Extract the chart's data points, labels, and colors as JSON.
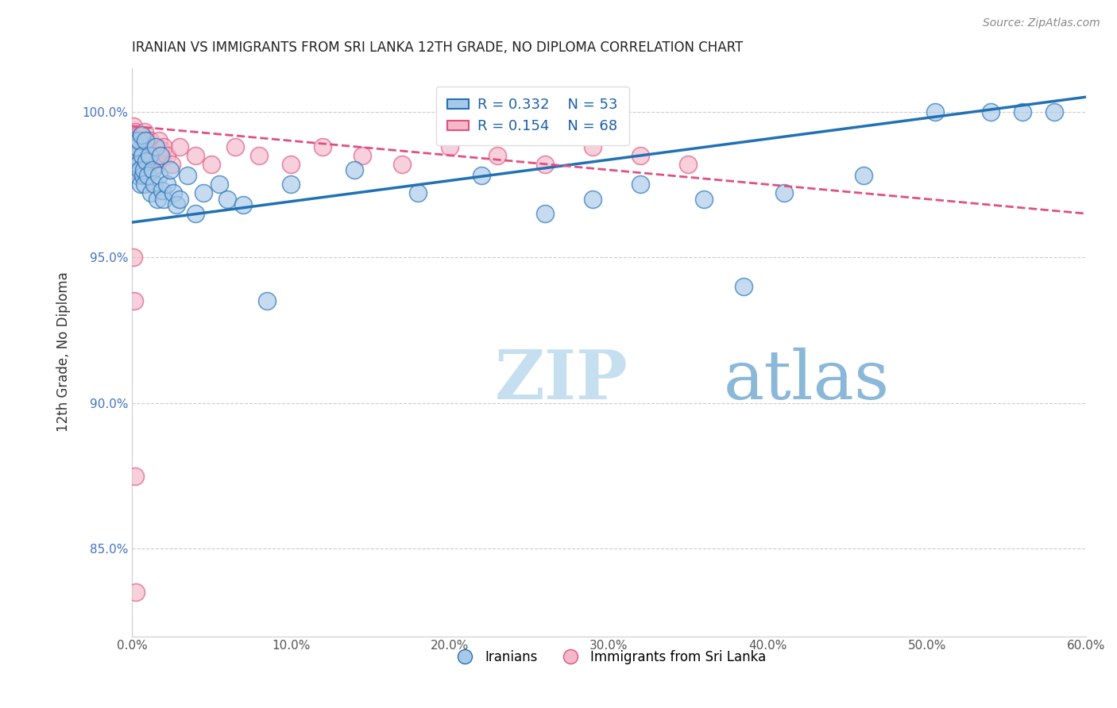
{
  "title": "IRANIAN VS IMMIGRANTS FROM SRI LANKA 12TH GRADE, NO DIPLOMA CORRELATION CHART",
  "source_text": "Source: ZipAtlas.com",
  "xlabel": "",
  "ylabel": "12th Grade, No Diploma",
  "xlim": [
    0.0,
    60.0
  ],
  "ylim": [
    82.0,
    101.5
  ],
  "xticks": [
    0.0,
    10.0,
    20.0,
    30.0,
    40.0,
    50.0,
    60.0
  ],
  "yticks": [
    85.0,
    90.0,
    95.0,
    100.0
  ],
  "ytick_labels": [
    "85.0%",
    "90.0%",
    "95.0%",
    "100.0%"
  ],
  "xtick_labels": [
    "0.0%",
    "10.0%",
    "20.0%",
    "30.0%",
    "40.0%",
    "50.0%",
    "60.0%"
  ],
  "legend_r1": "R = 0.332",
  "legend_n1": "N = 53",
  "legend_r2": "R = 0.154",
  "legend_n2": "N = 68",
  "color_blue": "#a8c8e8",
  "color_pink": "#f4b8c8",
  "color_blue_line": "#2171b5",
  "color_pink_line": "#e05080",
  "color_title": "#222222",
  "watermark_color": "#d8eaf5",
  "blue_trend_x0": 0.0,
  "blue_trend_y0": 96.2,
  "blue_trend_x1": 60.0,
  "blue_trend_y1": 100.5,
  "pink_trend_x0": 0.0,
  "pink_trend_y0": 99.5,
  "pink_trend_x1": 60.0,
  "pink_trend_y1": 96.5,
  "iranians_x": [
    0.15,
    0.2,
    0.3,
    0.35,
    0.4,
    0.45,
    0.5,
    0.55,
    0.6,
    0.65,
    0.7,
    0.75,
    0.8,
    0.85,
    0.9,
    1.0,
    1.1,
    1.2,
    1.3,
    1.4,
    1.5,
    1.6,
    1.7,
    1.8,
    1.9,
    2.0,
    2.2,
    2.4,
    2.6,
    2.8,
    3.0,
    3.5,
    4.0,
    4.5,
    5.5,
    6.0,
    7.0,
    8.5,
    10.0,
    14.0,
    18.0,
    22.0,
    26.0,
    29.0,
    32.0,
    36.0,
    38.5,
    41.0,
    46.0,
    50.5,
    54.0,
    56.0,
    58.0
  ],
  "iranians_y": [
    99.0,
    98.5,
    98.8,
    97.8,
    98.2,
    99.0,
    98.0,
    97.5,
    99.2,
    98.5,
    97.8,
    98.0,
    97.5,
    99.0,
    98.3,
    97.8,
    98.5,
    97.2,
    98.0,
    97.5,
    98.8,
    97.0,
    97.8,
    98.5,
    97.3,
    97.0,
    97.5,
    98.0,
    97.2,
    96.8,
    97.0,
    97.8,
    96.5,
    97.2,
    97.5,
    97.0,
    96.8,
    93.5,
    97.5,
    98.0,
    97.2,
    97.8,
    96.5,
    97.0,
    97.5,
    97.0,
    94.0,
    97.2,
    97.8,
    100.0,
    100.0,
    100.0,
    100.0
  ],
  "srilanka_x": [
    0.05,
    0.08,
    0.1,
    0.12,
    0.15,
    0.18,
    0.2,
    0.22,
    0.25,
    0.28,
    0.3,
    0.32,
    0.35,
    0.38,
    0.4,
    0.42,
    0.45,
    0.48,
    0.5,
    0.52,
    0.55,
    0.58,
    0.6,
    0.63,
    0.65,
    0.68,
    0.7,
    0.73,
    0.75,
    0.78,
    0.8,
    0.85,
    0.9,
    0.95,
    1.0,
    1.05,
    1.1,
    1.15,
    1.2,
    1.3,
    1.4,
    1.5,
    1.6,
    1.7,
    1.8,
    1.9,
    2.0,
    2.2,
    2.5,
    3.0,
    4.0,
    5.0,
    6.5,
    8.0,
    10.0,
    12.0,
    14.5,
    17.0,
    20.0,
    23.0,
    26.0,
    29.0,
    32.0,
    35.0,
    0.1,
    0.15,
    0.2,
    0.25
  ],
  "srilanka_y": [
    99.2,
    98.8,
    99.5,
    98.5,
    99.0,
    98.2,
    99.3,
    98.7,
    98.0,
    99.1,
    98.4,
    99.0,
    98.6,
    99.2,
    98.3,
    98.8,
    99.0,
    98.5,
    98.2,
    99.0,
    98.7,
    98.4,
    99.2,
    98.8,
    98.5,
    99.0,
    98.6,
    98.2,
    98.9,
    99.3,
    98.7,
    98.5,
    98.3,
    99.0,
    98.8,
    98.5,
    98.2,
    99.0,
    98.7,
    98.4,
    98.8,
    98.5,
    98.2,
    99.0,
    98.7,
    98.4,
    98.8,
    98.5,
    98.2,
    98.8,
    98.5,
    98.2,
    98.8,
    98.5,
    98.2,
    98.8,
    98.5,
    98.2,
    98.8,
    98.5,
    98.2,
    98.8,
    98.5,
    98.2,
    95.0,
    93.5,
    87.5,
    83.5
  ]
}
